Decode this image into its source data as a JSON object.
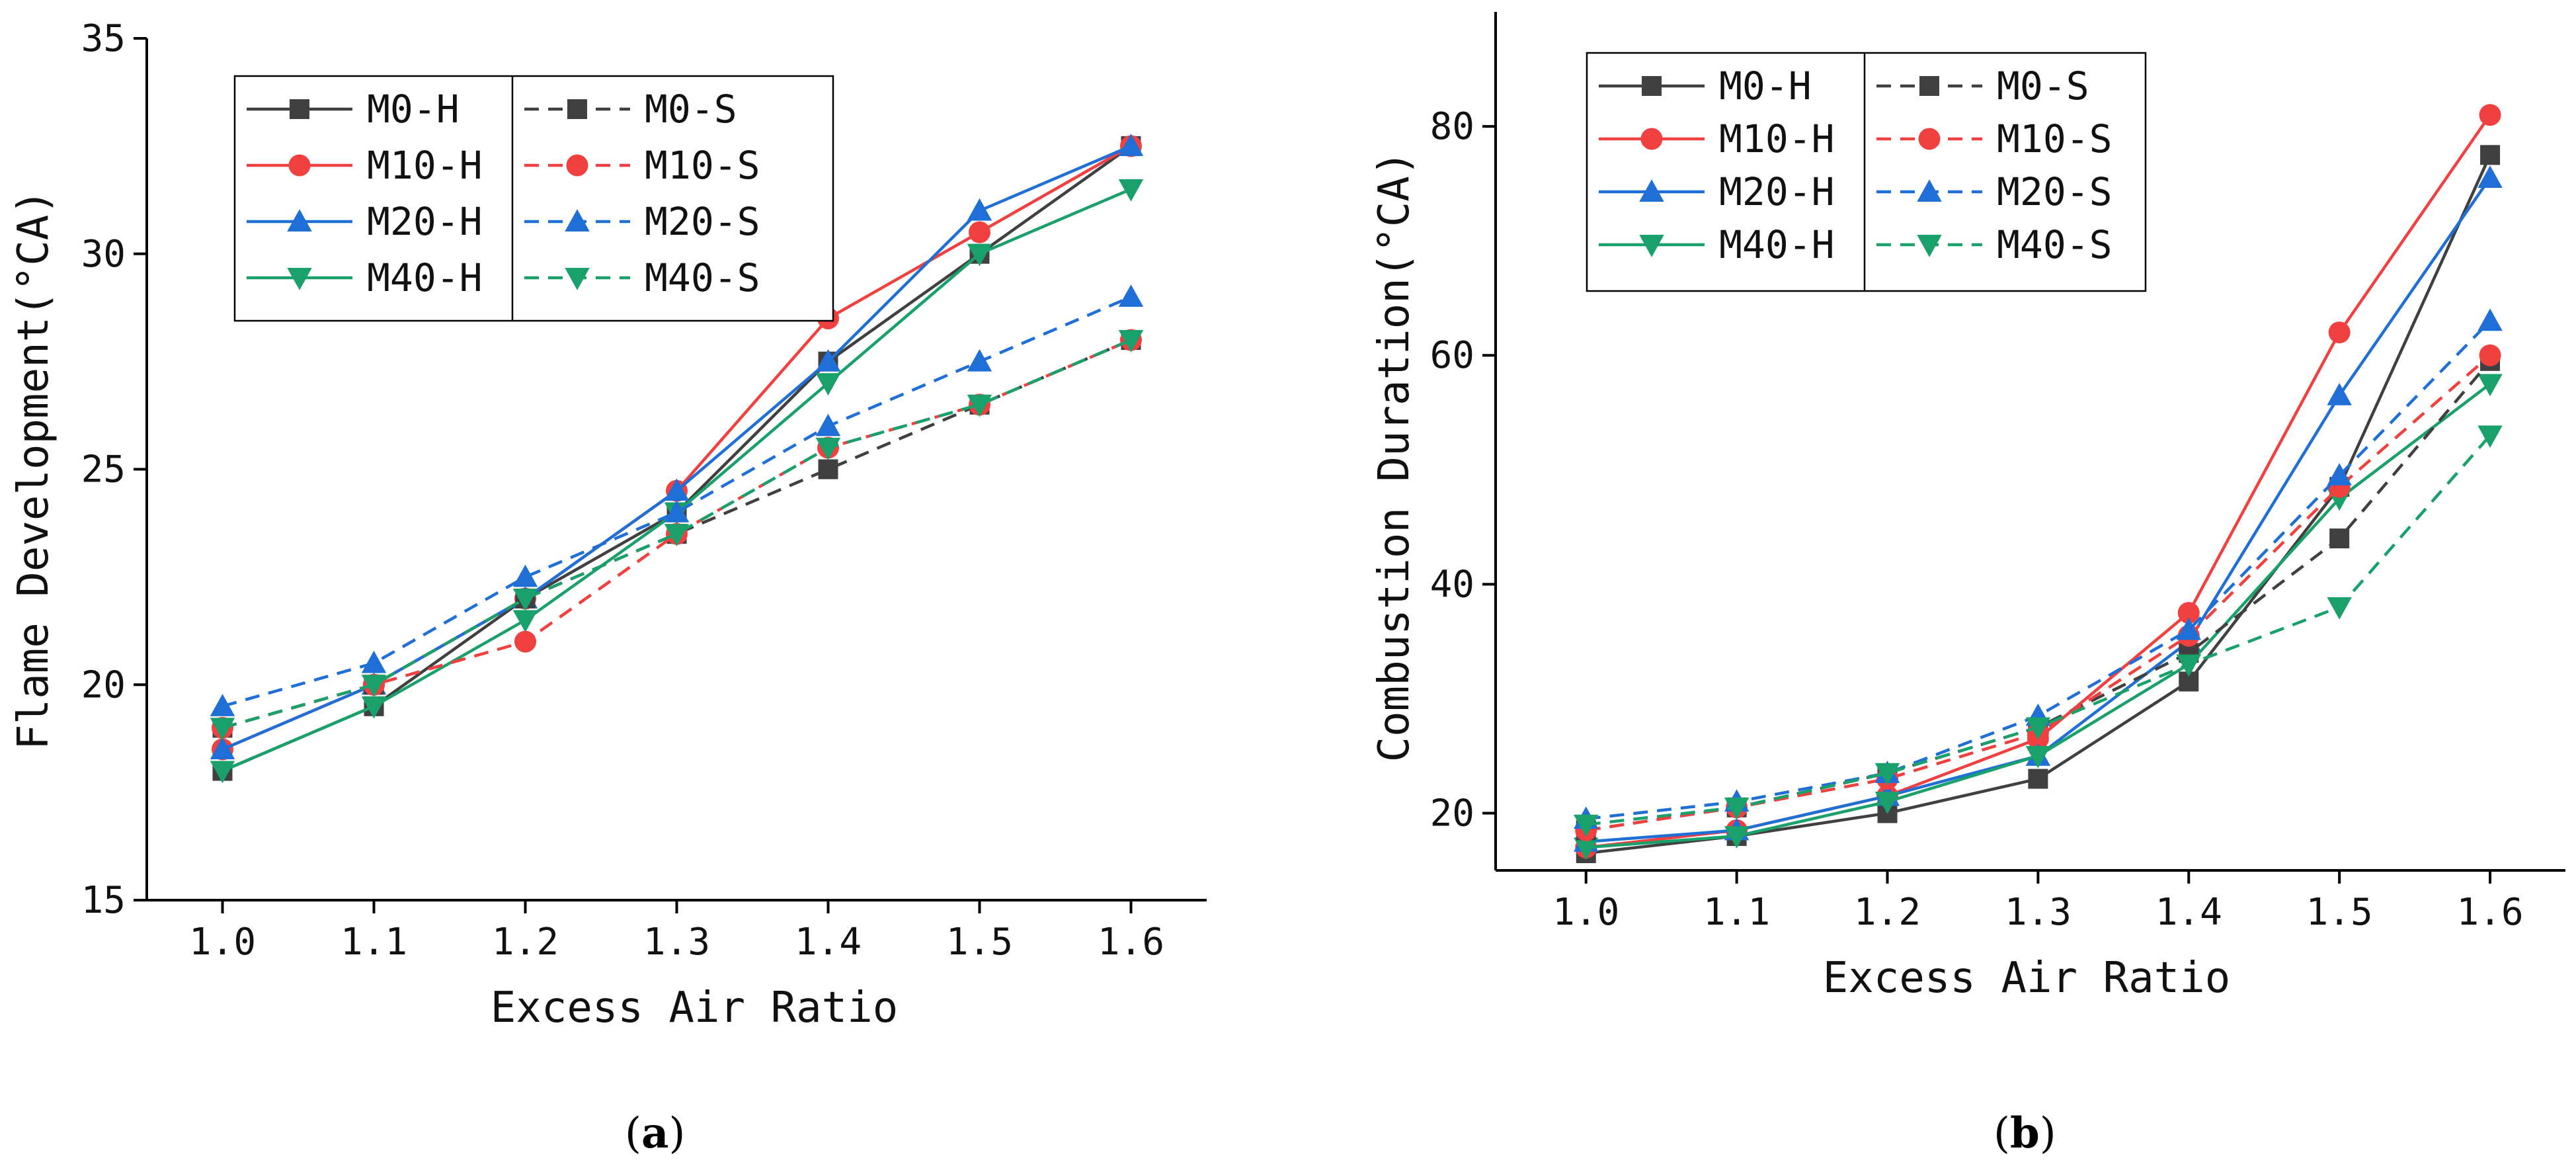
{
  "chart_data": [
    {
      "type": "line",
      "title": "",
      "panel_label": "a",
      "xlabel": "Excess Air Ratio",
      "ylabel": "Flame Development(°CA)",
      "x": [
        1.0,
        1.1,
        1.2,
        1.3,
        1.4,
        1.5,
        1.6
      ],
      "x_tick_labels": [
        "1.0",
        "1.1",
        "1.2",
        "1.3",
        "1.4",
        "1.5",
        "1.6"
      ],
      "xlim": [
        0.95,
        1.65
      ],
      "ylim": [
        15,
        35
      ],
      "y_ticks": [
        15,
        20,
        25,
        30,
        35
      ],
      "y_tick_labels": [
        "15",
        "20",
        "25",
        "30",
        "35"
      ],
      "legend_position": "top-left",
      "series": [
        {
          "name": "M0-H",
          "color": "#404040",
          "marker": "square",
          "dash": "solid",
          "values": [
            18.0,
            19.5,
            22.0,
            24.0,
            27.5,
            30.0,
            32.5
          ]
        },
        {
          "name": "M10-H",
          "color": "#f04040",
          "marker": "circle",
          "dash": "solid",
          "values": [
            18.5,
            20.0,
            22.0,
            24.5,
            28.5,
            30.5,
            32.5
          ]
        },
        {
          "name": "M20-H",
          "color": "#1f6fd6",
          "marker": "triangle-up",
          "dash": "solid",
          "values": [
            18.5,
            20.0,
            22.0,
            24.5,
            27.5,
            31.0,
            32.5
          ]
        },
        {
          "name": "M40-H",
          "color": "#1aa06a",
          "marker": "triangle-down",
          "dash": "solid",
          "values": [
            18.0,
            19.5,
            21.5,
            24.0,
            27.0,
            30.0,
            31.5
          ]
        },
        {
          "name": "M0-S",
          "color": "#404040",
          "marker": "square",
          "dash": "dashed",
          "values": [
            19.0,
            20.0,
            22.0,
            23.5,
            25.0,
            26.5,
            28.0
          ]
        },
        {
          "name": "M10-S",
          "color": "#f04040",
          "marker": "circle",
          "dash": "dashed",
          "values": [
            19.0,
            20.0,
            21.0,
            23.5,
            25.5,
            26.5,
            28.0
          ]
        },
        {
          "name": "M20-S",
          "color": "#1f6fd6",
          "marker": "triangle-up",
          "dash": "dashed",
          "values": [
            19.5,
            20.5,
            22.5,
            24.0,
            26.0,
            27.5,
            29.0
          ]
        },
        {
          "name": "M40-S",
          "color": "#1aa06a",
          "marker": "triangle-down",
          "dash": "dashed",
          "values": [
            19.0,
            20.0,
            22.0,
            23.5,
            25.5,
            26.5,
            28.0
          ]
        }
      ]
    },
    {
      "type": "line",
      "title": "",
      "panel_label": "b",
      "xlabel": "Excess Air Ratio",
      "ylabel": "Combustion Duration(°CA)",
      "x": [
        1.0,
        1.1,
        1.2,
        1.3,
        1.4,
        1.5,
        1.6
      ],
      "x_tick_labels": [
        "1.0",
        "1.1",
        "1.2",
        "1.3",
        "1.4",
        "1.5",
        "1.6"
      ],
      "xlim": [
        0.94,
        1.65
      ],
      "ylim": [
        15,
        90
      ],
      "y_ticks": [
        20,
        40,
        60,
        80
      ],
      "y_tick_labels": [
        "20",
        "40",
        "60",
        "80"
      ],
      "legend_position": "top-left",
      "series": [
        {
          "name": "M0-H",
          "color": "#404040",
          "marker": "square",
          "dash": "solid",
          "values": [
            16.5,
            18.0,
            20.0,
            23.0,
            31.5,
            48.5,
            77.5
          ]
        },
        {
          "name": "M10-H",
          "color": "#f04040",
          "marker": "circle",
          "dash": "solid",
          "values": [
            17.0,
            18.5,
            21.5,
            26.5,
            37.5,
            62.0,
            81.0
          ]
        },
        {
          "name": "M20-H",
          "color": "#1f6fd6",
          "marker": "triangle-up",
          "dash": "solid",
          "values": [
            17.5,
            18.5,
            21.5,
            25.0,
            35.0,
            56.5,
            75.5
          ]
        },
        {
          "name": "M40-H",
          "color": "#1aa06a",
          "marker": "triangle-down",
          "dash": "solid",
          "values": [
            17.0,
            18.0,
            21.0,
            25.0,
            33.0,
            47.5,
            57.5
          ]
        },
        {
          "name": "M0-S",
          "color": "#404040",
          "marker": "square",
          "dash": "dashed",
          "values": [
            18.5,
            20.5,
            23.5,
            27.5,
            34.0,
            44.0,
            59.5
          ]
        },
        {
          "name": "M10-S",
          "color": "#f04040",
          "marker": "circle",
          "dash": "dashed",
          "values": [
            18.5,
            20.5,
            23.0,
            27.0,
            35.5,
            48.5,
            60.0
          ]
        },
        {
          "name": "M20-S",
          "color": "#1f6fd6",
          "marker": "triangle-up",
          "dash": "dashed",
          "values": [
            19.5,
            21.0,
            23.5,
            28.5,
            36.0,
            49.5,
            63.0
          ]
        },
        {
          "name": "M40-S",
          "color": "#1aa06a",
          "marker": "triangle-down",
          "dash": "dashed",
          "values": [
            19.0,
            20.5,
            23.5,
            27.5,
            33.0,
            38.0,
            53.0
          ]
        }
      ]
    }
  ]
}
